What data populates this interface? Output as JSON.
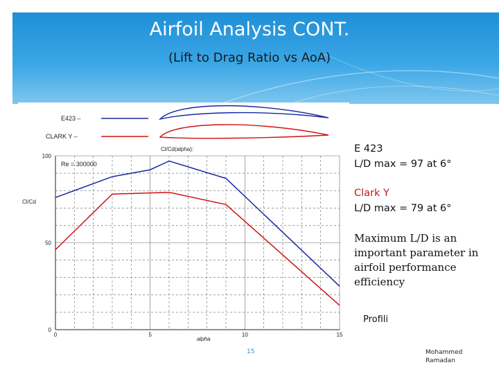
{
  "slide": {
    "title": "Airfoil Analysis CONT.",
    "subtitle": "(Lift to Drag Ratio vs AoA)",
    "page_number": "15",
    "author_line1": "Mohammed",
    "author_line2": "Ramadan"
  },
  "side_text": {
    "e423_name": "E 423",
    "e423_value": "L/D max = 97 at 6°",
    "clarky_name": "Clark Y",
    "clarky_value": "L/D max = 79 at 6°",
    "note": "Maximum L/D is an important parameter in airfoil performance efficiency",
    "source": "Profili"
  },
  "colors": {
    "e423": "#1428a0",
    "clark_y": "#d01010",
    "header": "#2b9be0"
  },
  "chart_data": {
    "type": "line",
    "title": "Cl/Cd(alpha):",
    "annotation": "Re = 300000",
    "ylabel": "Cl/Cd",
    "xlabel": "alpha",
    "xlim": [
      0,
      15
    ],
    "ylim": [
      0,
      100
    ],
    "x_ticks": [
      "0",
      "5",
      "10",
      "15"
    ],
    "y_ticks": [
      "0",
      "50",
      "100"
    ],
    "grid": true,
    "legend": [
      {
        "label": "E423 –",
        "series": "E423"
      },
      {
        "label": "CLARK Y –",
        "series": "CLARK Y"
      }
    ],
    "series": [
      {
        "name": "E423",
        "color": "#1428a0",
        "x": [
          0,
          3,
          5,
          6,
          9,
          15
        ],
        "y": [
          76,
          88,
          92,
          97,
          87,
          25
        ]
      },
      {
        "name": "CLARK Y",
        "color": "#d01010",
        "x": [
          0,
          3,
          6,
          9,
          15
        ],
        "y": [
          46,
          78,
          79,
          72,
          14
        ]
      }
    ]
  }
}
